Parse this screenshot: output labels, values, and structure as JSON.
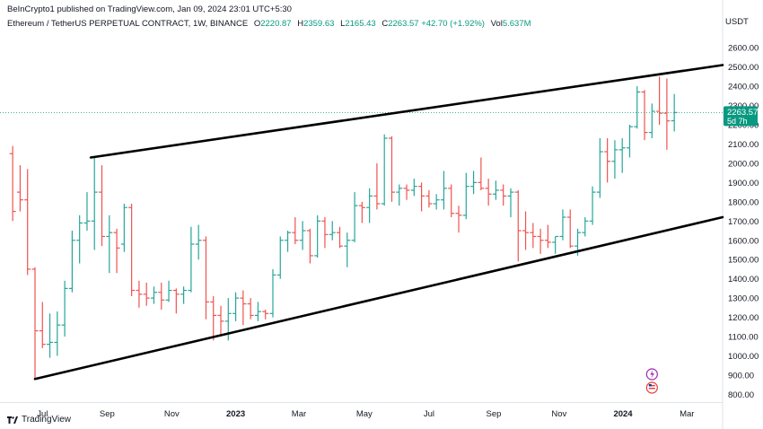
{
  "header": {
    "published": "BeInCrypto1 published on TradingView.com, Jan 09, 2024 23:01 UTC+5:30",
    "symbol": "Ethereum / TetherUS PERPETUAL CONTRACT, 1W, BINANCE",
    "open_label": "O",
    "open": "2220.87",
    "high_label": "H",
    "high": "2359.63",
    "low_label": "L",
    "low": "2165.43",
    "close_label": "C",
    "close": "2263.57",
    "change": "+42.70 (+1.92%)",
    "vol_label": "Vol",
    "vol": "5.637M"
  },
  "footer": {
    "brand": "TradingView"
  },
  "colors": {
    "up": "#26a69a",
    "down": "#ef5350",
    "trendline": "#000000",
    "price_tag": "#089981"
  },
  "chart_data": {
    "type": "ohlc",
    "unit": "USDT",
    "ylim": [
      760,
      2680
    ],
    "yticks": [
      "2600.00",
      "2500.00",
      "2400.00",
      "2300.00",
      "2200.00",
      "2100.00",
      "2000.00",
      "1900.00",
      "1800.00",
      "1700.00",
      "1600.00",
      "1500.00",
      "1400.00",
      "1300.00",
      "1200.00",
      "1100.00",
      "1000.00",
      "900.00",
      "800.00"
    ],
    "xticks": [
      {
        "week": 4.5,
        "label": "Jul",
        "bold": false
      },
      {
        "week": 13.2,
        "label": "Sep",
        "bold": false
      },
      {
        "week": 21.9,
        "label": "Nov",
        "bold": false
      },
      {
        "week": 30.5,
        "label": "2023",
        "bold": true
      },
      {
        "week": 39.0,
        "label": "Mar",
        "bold": false
      },
      {
        "week": 47.8,
        "label": "May",
        "bold": false
      },
      {
        "week": 56.5,
        "label": "Jul",
        "bold": false
      },
      {
        "week": 65.2,
        "label": "Sep",
        "bold": false
      },
      {
        "week": 74.0,
        "label": "Nov",
        "bold": false
      },
      {
        "week": 82.6,
        "label": "2024",
        "bold": true
      },
      {
        "week": 91.2,
        "label": "Mar",
        "bold": false
      }
    ],
    "x_span": [
      0,
      96
    ],
    "current_price": {
      "label": "2263.57",
      "countdown": "5d 7h",
      "value": 2263.57
    },
    "trendlines": [
      {
        "from": {
          "week": 11,
          "price": 2030
        },
        "to": {
          "week": 96,
          "price": 2510
        }
      },
      {
        "from": {
          "week": 3.5,
          "price": 880
        },
        "to": {
          "week": 96,
          "price": 1720
        }
      }
    ],
    "candles": [
      {
        "o": 2050,
        "h": 2090,
        "l": 1700,
        "c": 1750
      },
      {
        "o": 1850,
        "h": 1990,
        "l": 1750,
        "c": 1810
      },
      {
        "o": 1810,
        "h": 1970,
        "l": 1420,
        "c": 1450
      },
      {
        "o": 1450,
        "h": 1460,
        "l": 880,
        "c": 1130
      },
      {
        "o": 1130,
        "h": 1280,
        "l": 1040,
        "c": 1060
      },
      {
        "o": 1060,
        "h": 1220,
        "l": 990,
        "c": 1070
      },
      {
        "o": 1070,
        "h": 1230,
        "l": 1000,
        "c": 1160
      },
      {
        "o": 1160,
        "h": 1390,
        "l": 1100,
        "c": 1350
      },
      {
        "o": 1350,
        "h": 1650,
        "l": 1330,
        "c": 1600
      },
      {
        "o": 1600,
        "h": 1730,
        "l": 1480,
        "c": 1690
      },
      {
        "o": 1690,
        "h": 1850,
        "l": 1650,
        "c": 1700
      },
      {
        "o": 1700,
        "h": 2030,
        "l": 1550,
        "c": 1850
      },
      {
        "o": 1850,
        "h": 1990,
        "l": 1570,
        "c": 1620
      },
      {
        "o": 1620,
        "h": 1730,
        "l": 1430,
        "c": 1640
      },
      {
        "o": 1640,
        "h": 1660,
        "l": 1430,
        "c": 1560
      },
      {
        "o": 1580,
        "h": 1790,
        "l": 1540,
        "c": 1770
      },
      {
        "o": 1770,
        "h": 1790,
        "l": 1310,
        "c": 1340
      },
      {
        "o": 1340,
        "h": 1390,
        "l": 1250,
        "c": 1320
      },
      {
        "o": 1320,
        "h": 1380,
        "l": 1260,
        "c": 1300
      },
      {
        "o": 1300,
        "h": 1360,
        "l": 1270,
        "c": 1330
      },
      {
        "o": 1330,
        "h": 1380,
        "l": 1240,
        "c": 1290
      },
      {
        "o": 1290,
        "h": 1390,
        "l": 1280,
        "c": 1340
      },
      {
        "o": 1340,
        "h": 1350,
        "l": 1220,
        "c": 1320
      },
      {
        "o": 1320,
        "h": 1360,
        "l": 1270,
        "c": 1340
      },
      {
        "o": 1340,
        "h": 1670,
        "l": 1330,
        "c": 1580
      },
      {
        "o": 1580,
        "h": 1680,
        "l": 1500,
        "c": 1600
      },
      {
        "o": 1600,
        "h": 1620,
        "l": 1190,
        "c": 1280
      },
      {
        "o": 1280,
        "h": 1310,
        "l": 1080,
        "c": 1210
      },
      {
        "o": 1210,
        "h": 1260,
        "l": 1100,
        "c": 1180
      },
      {
        "o": 1180,
        "h": 1300,
        "l": 1080,
        "c": 1220
      },
      {
        "o": 1220,
        "h": 1330,
        "l": 1180,
        "c": 1300
      },
      {
        "o": 1300,
        "h": 1340,
        "l": 1160,
        "c": 1270
      },
      {
        "o": 1270,
        "h": 1300,
        "l": 1190,
        "c": 1210
      },
      {
        "o": 1210,
        "h": 1280,
        "l": 1180,
        "c": 1230
      },
      {
        "o": 1230,
        "h": 1240,
        "l": 1190,
        "c": 1220
      },
      {
        "o": 1220,
        "h": 1450,
        "l": 1200,
        "c": 1420
      },
      {
        "o": 1420,
        "h": 1620,
        "l": 1400,
        "c": 1600
      },
      {
        "o": 1600,
        "h": 1650,
        "l": 1540,
        "c": 1640
      },
      {
        "o": 1640,
        "h": 1720,
        "l": 1580,
        "c": 1600
      },
      {
        "o": 1600,
        "h": 1700,
        "l": 1550,
        "c": 1650
      },
      {
        "o": 1650,
        "h": 1660,
        "l": 1480,
        "c": 1520
      },
      {
        "o": 1520,
        "h": 1730,
        "l": 1510,
        "c": 1700
      },
      {
        "o": 1700,
        "h": 1720,
        "l": 1560,
        "c": 1630
      },
      {
        "o": 1630,
        "h": 1700,
        "l": 1600,
        "c": 1640
      },
      {
        "o": 1640,
        "h": 1670,
        "l": 1560,
        "c": 1570
      },
      {
        "o": 1570,
        "h": 1640,
        "l": 1460,
        "c": 1600
      },
      {
        "o": 1600,
        "h": 1850,
        "l": 1590,
        "c": 1780
      },
      {
        "o": 1780,
        "h": 1800,
        "l": 1690,
        "c": 1770
      },
      {
        "o": 1770,
        "h": 1870,
        "l": 1690,
        "c": 1830
      },
      {
        "o": 1830,
        "h": 2000,
        "l": 1760,
        "c": 1790
      },
      {
        "o": 1790,
        "h": 2150,
        "l": 1780,
        "c": 2130
      },
      {
        "o": 2130,
        "h": 2140,
        "l": 1800,
        "c": 1850
      },
      {
        "o": 1850,
        "h": 1890,
        "l": 1780,
        "c": 1870
      },
      {
        "o": 1870,
        "h": 1890,
        "l": 1810,
        "c": 1860
      },
      {
        "o": 1860,
        "h": 1920,
        "l": 1830,
        "c": 1880
      },
      {
        "o": 1880,
        "h": 1900,
        "l": 1750,
        "c": 1830
      },
      {
        "o": 1830,
        "h": 1860,
        "l": 1770,
        "c": 1790
      },
      {
        "o": 1790,
        "h": 1840,
        "l": 1760,
        "c": 1810
      },
      {
        "o": 1810,
        "h": 1960,
        "l": 1760,
        "c": 1870
      },
      {
        "o": 1870,
        "h": 1890,
        "l": 1720,
        "c": 1740
      },
      {
        "o": 1740,
        "h": 1780,
        "l": 1640,
        "c": 1730
      },
      {
        "o": 1730,
        "h": 1950,
        "l": 1710,
        "c": 1880
      },
      {
        "o": 1880,
        "h": 1960,
        "l": 1840,
        "c": 1900
      },
      {
        "o": 1900,
        "h": 2030,
        "l": 1860,
        "c": 1870
      },
      {
        "o": 1870,
        "h": 1920,
        "l": 1780,
        "c": 1840
      },
      {
        "o": 1840,
        "h": 1910,
        "l": 1810,
        "c": 1860
      },
      {
        "o": 1860,
        "h": 1890,
        "l": 1780,
        "c": 1830
      },
      {
        "o": 1830,
        "h": 1870,
        "l": 1720,
        "c": 1850
      },
      {
        "o": 1850,
        "h": 1860,
        "l": 1490,
        "c": 1650
      },
      {
        "o": 1650,
        "h": 1750,
        "l": 1550,
        "c": 1640
      },
      {
        "o": 1640,
        "h": 1690,
        "l": 1560,
        "c": 1620
      },
      {
        "o": 1620,
        "h": 1660,
        "l": 1530,
        "c": 1600
      },
      {
        "o": 1600,
        "h": 1680,
        "l": 1560,
        "c": 1590
      },
      {
        "o": 1590,
        "h": 1620,
        "l": 1530,
        "c": 1620
      },
      {
        "o": 1620,
        "h": 1760,
        "l": 1600,
        "c": 1720
      },
      {
        "o": 1720,
        "h": 1760,
        "l": 1560,
        "c": 1570
      },
      {
        "o": 1570,
        "h": 1660,
        "l": 1520,
        "c": 1640
      },
      {
        "o": 1640,
        "h": 1720,
        "l": 1620,
        "c": 1700
      },
      {
        "o": 1700,
        "h": 1880,
        "l": 1680,
        "c": 1850
      },
      {
        "o": 1850,
        "h": 2130,
        "l": 1820,
        "c": 2060
      },
      {
        "o": 2060,
        "h": 2130,
        "l": 1900,
        "c": 2010
      },
      {
        "o": 2010,
        "h": 2120,
        "l": 1920,
        "c": 2070
      },
      {
        "o": 2070,
        "h": 2130,
        "l": 1950,
        "c": 2080
      },
      {
        "o": 2080,
        "h": 2200,
        "l": 2030,
        "c": 2190
      },
      {
        "o": 2190,
        "h": 2400,
        "l": 2180,
        "c": 2370
      },
      {
        "o": 2370,
        "h": 2380,
        "l": 2120,
        "c": 2160
      },
      {
        "o": 2160,
        "h": 2310,
        "l": 2130,
        "c": 2270
      },
      {
        "o": 2270,
        "h": 2450,
        "l": 2200,
        "c": 2260
      },
      {
        "o": 2260,
        "h": 2440,
        "l": 2070,
        "c": 2220
      },
      {
        "o": 2220.87,
        "h": 2359.63,
        "l": 2165.43,
        "c": 2263.57
      }
    ]
  }
}
